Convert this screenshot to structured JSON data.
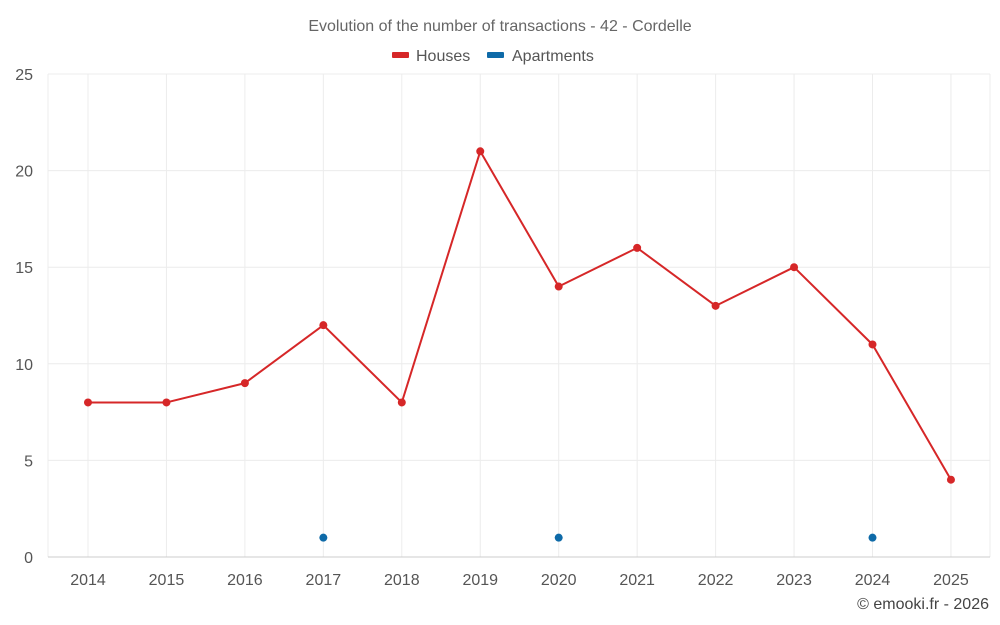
{
  "chart_data": {
    "type": "line",
    "title": "Evolution of the number of transactions - 42 - Cordelle",
    "x": [
      "2014",
      "2015",
      "2016",
      "2017",
      "2018",
      "2019",
      "2020",
      "2021",
      "2022",
      "2023",
      "2024",
      "2025"
    ],
    "ylim": [
      0,
      25
    ],
    "yticks": [
      0,
      5,
      10,
      15,
      20,
      25
    ],
    "grid": true,
    "legend_position": "top-center",
    "series": [
      {
        "name": "Houses",
        "color": "#d62728",
        "values": [
          8,
          8,
          9,
          12,
          8,
          21,
          14,
          16,
          13,
          15,
          11,
          4
        ]
      },
      {
        "name": "Apartments",
        "color": "#0e6aa8",
        "values": [
          null,
          null,
          null,
          1,
          null,
          null,
          1,
          null,
          null,
          null,
          1,
          null
        ]
      }
    ],
    "credit": "© emooki.fr - 2026"
  }
}
